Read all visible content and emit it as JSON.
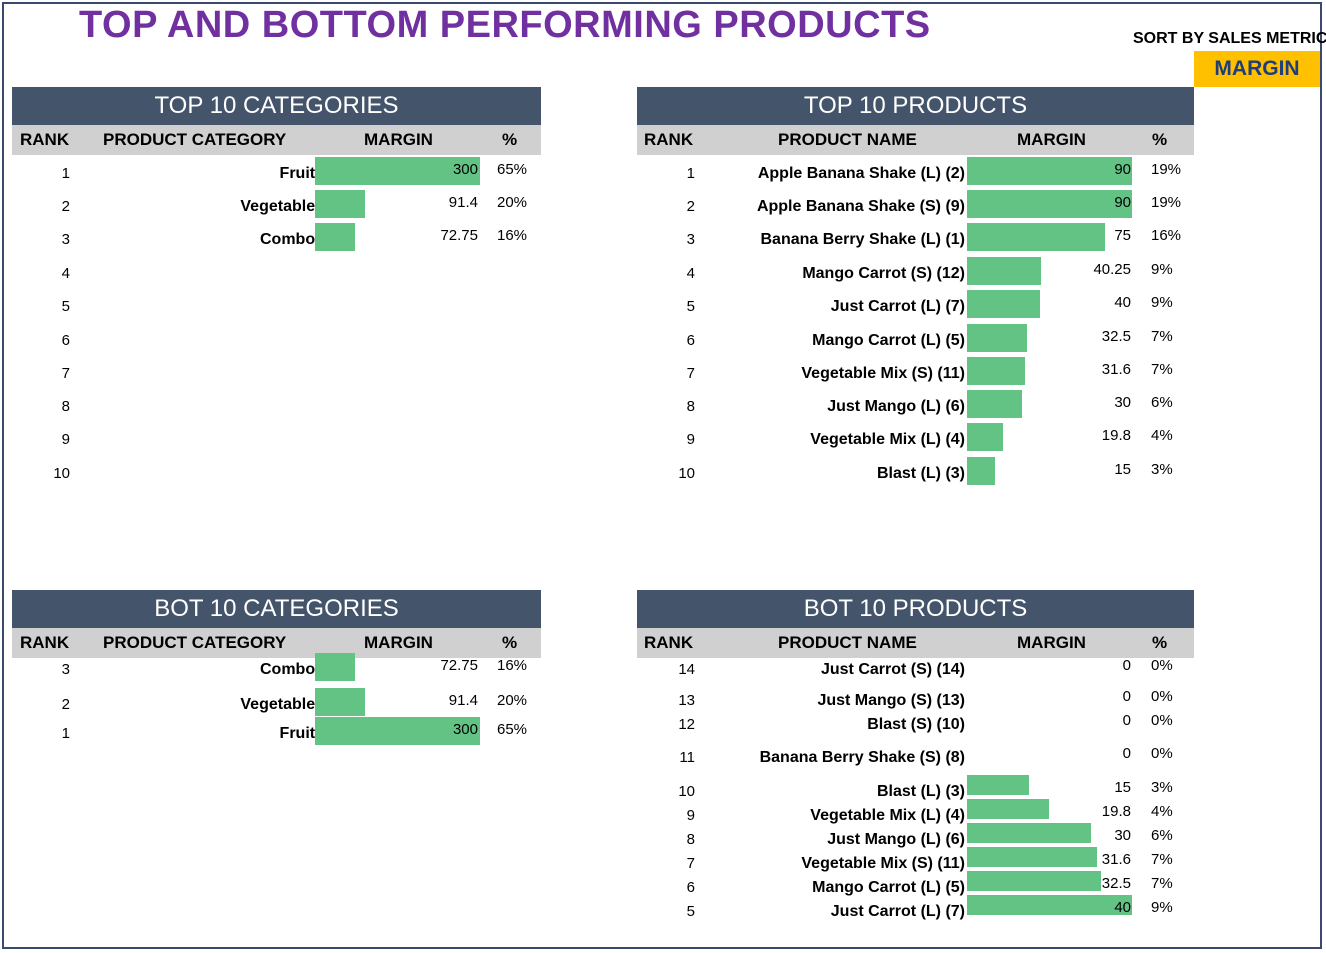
{
  "title": "TOP AND BOTTOM PERFORMING PRODUCTS",
  "sort": {
    "label": "SORT BY SALES METRIC",
    "value": "MARGIN"
  },
  "colors": {
    "bar": "#63c384",
    "header": "#44546a",
    "title": "#7030a0",
    "sort_bg": "#ffc000"
  },
  "top_categories": {
    "header": "TOP 10 CATEGORIES",
    "cols": {
      "rank": "RANK",
      "name": "PRODUCT CATEGORY",
      "metric": "MARGIN",
      "pct": "%"
    },
    "rows": [
      {
        "rank": "1",
        "name": "Fruits",
        "value": "300",
        "pct": "65%",
        "num": 300
      },
      {
        "rank": "2",
        "name": "Vegetables",
        "value": "91.4",
        "pct": "20%",
        "num": 91.4
      },
      {
        "rank": "3",
        "name": "Combos",
        "value": "72.75",
        "pct": "16%",
        "num": 72.75
      },
      {
        "rank": "4",
        "name": "",
        "value": "",
        "pct": "",
        "num": 0
      },
      {
        "rank": "5",
        "name": "",
        "value": "",
        "pct": "",
        "num": 0
      },
      {
        "rank": "6",
        "name": "",
        "value": "",
        "pct": "",
        "num": 0
      },
      {
        "rank": "7",
        "name": "",
        "value": "",
        "pct": "",
        "num": 0
      },
      {
        "rank": "8",
        "name": "",
        "value": "",
        "pct": "",
        "num": 0
      },
      {
        "rank": "9",
        "name": "",
        "value": "",
        "pct": "",
        "num": 0
      },
      {
        "rank": "10",
        "name": "",
        "value": "",
        "pct": "",
        "num": 0
      }
    ]
  },
  "top_products": {
    "header": "TOP 10 PRODUCTS",
    "cols": {
      "rank": "RANK",
      "name": "PRODUCT NAME",
      "metric": "MARGIN",
      "pct": "%"
    },
    "rows": [
      {
        "rank": "1",
        "name": "Apple Banana Shake (L) (2)",
        "value": "90",
        "pct": "19%",
        "num": 90
      },
      {
        "rank": "2",
        "name": "Apple Banana Shake (S) (9)",
        "value": "90",
        "pct": "19%",
        "num": 90
      },
      {
        "rank": "3",
        "name": "Banana Berry Shake (L) (1)",
        "value": "75",
        "pct": "16%",
        "num": 75
      },
      {
        "rank": "4",
        "name": "Mango Carrot (S) (12)",
        "value": "40.25",
        "pct": "9%",
        "num": 40.25
      },
      {
        "rank": "5",
        "name": "Just Carrot (L) (7)",
        "value": "40",
        "pct": "9%",
        "num": 40
      },
      {
        "rank": "6",
        "name": "Mango Carrot (L) (5)",
        "value": "32.5",
        "pct": "7%",
        "num": 32.5
      },
      {
        "rank": "7",
        "name": "Vegetable Mix (S) (11)",
        "value": "31.6",
        "pct": "7%",
        "num": 31.6
      },
      {
        "rank": "8",
        "name": "Just Mango (L) (6)",
        "value": "30",
        "pct": "6%",
        "num": 30
      },
      {
        "rank": "9",
        "name": "Vegetable Mix (L) (4)",
        "value": "19.8",
        "pct": "4%",
        "num": 19.8
      },
      {
        "rank": "10",
        "name": "Blast (L) (3)",
        "value": "15",
        "pct": "3%",
        "num": 15
      }
    ]
  },
  "bot_categories": {
    "header": "BOT 10 CATEGORIES",
    "cols": {
      "rank": "RANK",
      "name": "PRODUCT CATEGORY",
      "metric": "MARGIN",
      "pct": "%"
    },
    "rows": [
      {
        "rank": "3",
        "name": "Combos",
        "value": "72.75",
        "pct": "16%",
        "num": 72.75
      },
      {
        "rank": "2",
        "name": "Vegetables",
        "value": "91.4",
        "pct": "20%",
        "num": 91.4
      },
      {
        "rank": "1",
        "name": "Fruits",
        "value": "300",
        "pct": "65%",
        "num": 300
      }
    ]
  },
  "bot_products": {
    "header": "BOT 10 PRODUCTS",
    "cols": {
      "rank": "RANK",
      "name": "PRODUCT NAME",
      "metric": "MARGIN",
      "pct": "%"
    },
    "rows": [
      {
        "rank": "14",
        "name": "Just Carrot (S) (14)",
        "value": "0",
        "pct": "0%",
        "num": 0
      },
      {
        "rank": "13",
        "name": "Just Mango (S) (13)",
        "value": "0",
        "pct": "0%",
        "num": 0
      },
      {
        "rank": "12",
        "name": "Blast (S) (10)",
        "value": "0",
        "pct": "0%",
        "num": 0
      },
      {
        "rank": "11",
        "name": "Banana Berry Shake (S) (8)",
        "value": "0",
        "pct": "0%",
        "num": 0
      },
      {
        "rank": "10",
        "name": "Blast (L) (3)",
        "value": "15",
        "pct": "3%",
        "num": 15
      },
      {
        "rank": "9",
        "name": "Vegetable Mix (L) (4)",
        "value": "19.8",
        "pct": "4%",
        "num": 19.8
      },
      {
        "rank": "8",
        "name": "Just Mango (L) (6)",
        "value": "30",
        "pct": "6%",
        "num": 30
      },
      {
        "rank": "7",
        "name": "Vegetable Mix (S) (11)",
        "value": "31.6",
        "pct": "7%",
        "num": 31.6
      },
      {
        "rank": "6",
        "name": "Mango Carrot (L) (5)",
        "value": "32.5",
        "pct": "7%",
        "num": 32.5
      },
      {
        "rank": "5",
        "name": "Just Carrot (L) (7)",
        "value": "40",
        "pct": "9%",
        "num": 40
      }
    ]
  }
}
